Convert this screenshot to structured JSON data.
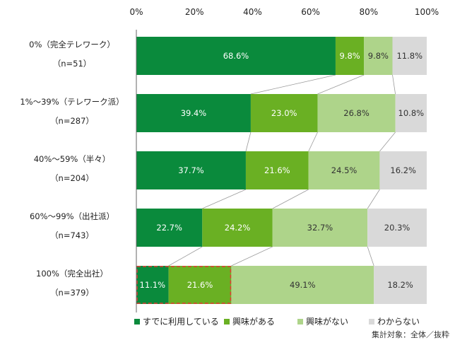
{
  "chart_data": {
    "type": "bar",
    "orientation": "horizontal",
    "stacked": "100%",
    "xlim": [
      0,
      100
    ],
    "x_ticks": [
      "0%",
      "20%",
      "40%",
      "60%",
      "80%",
      "100%"
    ],
    "categories": [
      [
        "0%（完全テレワーク）",
        "（n=51）"
      ],
      [
        "1%～39%（テレワーク派）",
        "（n=287）"
      ],
      [
        "40%～59%（半々）",
        "（n=204）"
      ],
      [
        "60%～99%（出社派）",
        "（n=743）"
      ],
      [
        "100%（完全出社）",
        "（n=379）"
      ]
    ],
    "series": [
      {
        "name": "すでに利用している",
        "color": "#0a8a3c",
        "text_color": "#ffffff",
        "values": [
          68.6,
          39.4,
          37.7,
          22.7,
          11.1
        ],
        "labels": [
          "68.6%",
          "39.4%",
          "37.7%",
          "22.7%",
          "11.1%"
        ]
      },
      {
        "name": "興味がある",
        "color": "#6ab023",
        "text_color": "#ffffff",
        "values": [
          9.8,
          23.0,
          21.6,
          24.2,
          21.6
        ],
        "labels": [
          "9.8%",
          "23.0%",
          "21.6%",
          "24.2%",
          "21.6%"
        ]
      },
      {
        "name": "興味がない",
        "color": "#aed48a",
        "text_color": "#333333",
        "values": [
          9.8,
          26.8,
          24.5,
          32.7,
          49.1
        ],
        "labels": [
          "9.8%",
          "26.8%",
          "24.5%",
          "32.7%",
          "49.1%"
        ]
      },
      {
        "name": "わからない",
        "color": "#d9d9d9",
        "text_color": "#333333",
        "values": [
          11.8,
          10.8,
          16.2,
          20.3,
          18.2
        ],
        "labels": [
          "11.8%",
          "10.8%",
          "16.2%",
          "20.3%",
          "18.2%"
        ]
      }
    ],
    "highlight": {
      "row": 4,
      "series": [
        0,
        1
      ],
      "color": "#e53935",
      "style": "dashed"
    },
    "connector_lines": true,
    "legend_position": "bottom",
    "grid": false
  },
  "footnote": "集計対象：全体／抜粋"
}
